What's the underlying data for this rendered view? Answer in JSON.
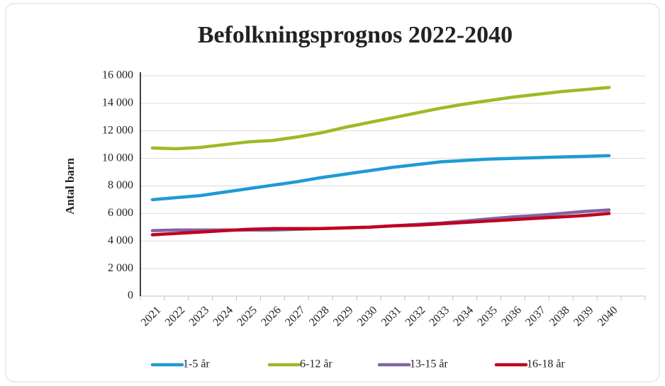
{
  "chart_data": {
    "type": "line",
    "title": "Befolkningsprognos 2022-2040",
    "y_label": "Antal barn",
    "categories": [
      "2021",
      "2022",
      "2023",
      "2024",
      "2025",
      "2026",
      "2027",
      "2028",
      "2029",
      "2030",
      "2031",
      "2032",
      "2033",
      "2034",
      "2035",
      "2036",
      "2037",
      "2038",
      "2039",
      "2040",
      null
    ],
    "series": [
      {
        "name": "1-5 år",
        "color": "#1f9ad6",
        "values": [
          7000,
          7150,
          7300,
          7550,
          7800,
          8050,
          8300,
          8600,
          8850,
          9100,
          9350,
          9550,
          9750,
          9850,
          9950,
          10000,
          10050,
          10100,
          10150,
          10200,
          null
        ]
      },
      {
        "name": "6-12 år",
        "color": "#9bbb25",
        "values": [
          10750,
          10700,
          10800,
          11000,
          11200,
          11300,
          11550,
          11850,
          12250,
          12600,
          12950,
          13300,
          13650,
          13950,
          14200,
          14450,
          14650,
          14850,
          15000,
          15150,
          null
        ]
      },
      {
        "name": "13-15 år",
        "color": "#8064a2",
        "values": [
          4750,
          4800,
          4800,
          4800,
          4800,
          4800,
          4850,
          4900,
          4950,
          5000,
          5100,
          5200,
          5300,
          5450,
          5600,
          5750,
          5850,
          6000,
          6150,
          6250,
          null
        ]
      },
      {
        "name": "16-18 år",
        "color": "#c00020",
        "values": [
          4450,
          4550,
          4650,
          4750,
          4850,
          4900,
          4900,
          4900,
          4950,
          5000,
          5100,
          5150,
          5250,
          5350,
          5450,
          5550,
          5650,
          5750,
          5850,
          6000,
          null
        ]
      }
    ],
    "ylim": [
      0,
      16000
    ],
    "yticks": [
      0,
      {
        "value": 2000,
        "label": "2 000"
      },
      {
        "value": 4000,
        "label": "4 000"
      },
      {
        "value": 6000,
        "label": "6 000"
      },
      {
        "value": 8000,
        "label": "8 000"
      },
      {
        "value": 10000,
        "label": "10 000"
      },
      {
        "value": 12000,
        "label": "12 000"
      },
      {
        "value": 14000,
        "label": "14 000"
      },
      {
        "value": 16000,
        "label": "16 000"
      }
    ],
    "grid": true,
    "legend": "bottom"
  }
}
